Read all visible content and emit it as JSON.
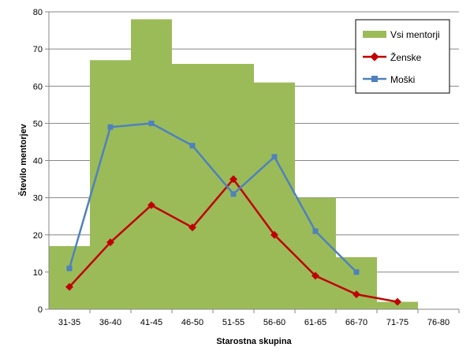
{
  "chart_data": {
    "type": "bar",
    "xlabel": "Starostna skupina",
    "ylabel": "Število mentorjev",
    "ylim": [
      0,
      80
    ],
    "yticks": [
      0,
      10,
      20,
      30,
      40,
      50,
      60,
      70,
      80
    ],
    "grid": true,
    "legend_position": "top-right",
    "categories": [
      "31-35",
      "36-40",
      "41-45",
      "46-50",
      "51-55",
      "56-60",
      "61-65",
      "66-70",
      "71-75",
      "76-80"
    ],
    "series": [
      {
        "name": "Vsi mentorji",
        "kind": "bar",
        "color": "#9bbb59",
        "values": [
          17,
          67,
          78,
          66,
          66,
          61,
          30,
          14,
          2,
          0
        ]
      },
      {
        "name": "Ženske",
        "kind": "line",
        "marker": "diamond",
        "color": "#c00000",
        "values": [
          6,
          18,
          28,
          22,
          35,
          20,
          9,
          4,
          2,
          null
        ]
      },
      {
        "name": "Moški",
        "kind": "line",
        "marker": "square",
        "color": "#4f81bd",
        "values": [
          11,
          49,
          50,
          44,
          31,
          41,
          21,
          10,
          null,
          null
        ]
      }
    ]
  }
}
